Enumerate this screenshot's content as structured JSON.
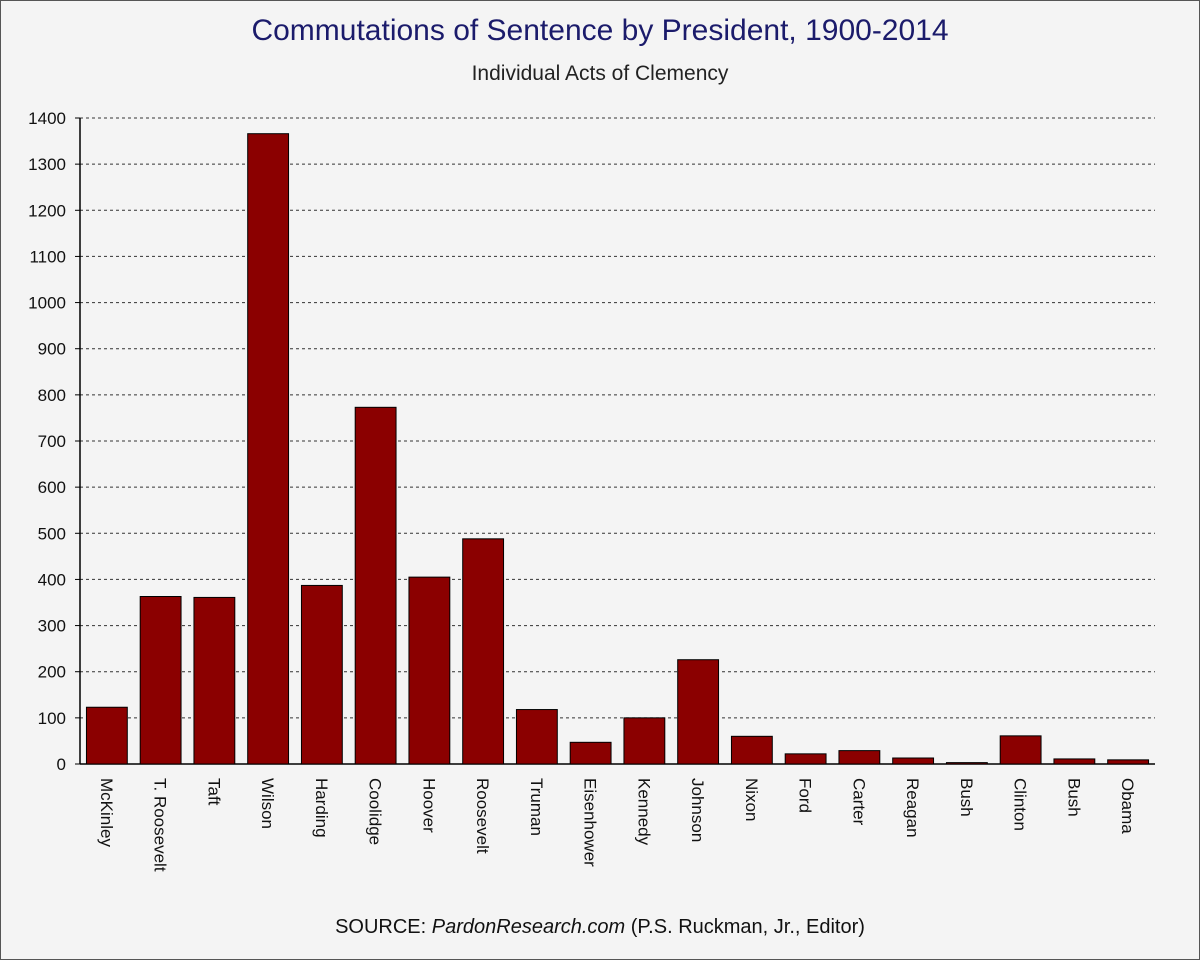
{
  "chart_data": {
    "type": "bar",
    "title": "Commutations of Sentence by President, 1900-2014",
    "subtitle": "Individual Acts of Clemency",
    "xlabel": "",
    "ylabel": "",
    "ylim": [
      0,
      1400
    ],
    "yticks": [
      0,
      100,
      200,
      300,
      400,
      500,
      600,
      700,
      800,
      900,
      1000,
      1100,
      1200,
      1300,
      1400
    ],
    "grid": true,
    "categories": [
      "McKinley",
      "T. Roosevelt",
      "Taft",
      "Wilson",
      "Harding",
      "Coolidge",
      "Hoover",
      "Roosevelt",
      "Truman",
      "Eisenhower",
      "Kennedy",
      "Johnson",
      "Nixon",
      "Ford",
      "Carter",
      "Reagan",
      "Bush",
      "Clinton",
      "Bush",
      "Obama"
    ],
    "values": [
      123,
      363,
      361,
      1366,
      387,
      773,
      405,
      488,
      118,
      47,
      100,
      226,
      60,
      22,
      29,
      13,
      3,
      61,
      11,
      9
    ],
    "bar_color": "#8b0000"
  },
  "source": {
    "prefix": "SOURCE: ",
    "site": "PardonResearch.com",
    "suffix": " (P.S. Ruckman, Jr., Editor)"
  }
}
